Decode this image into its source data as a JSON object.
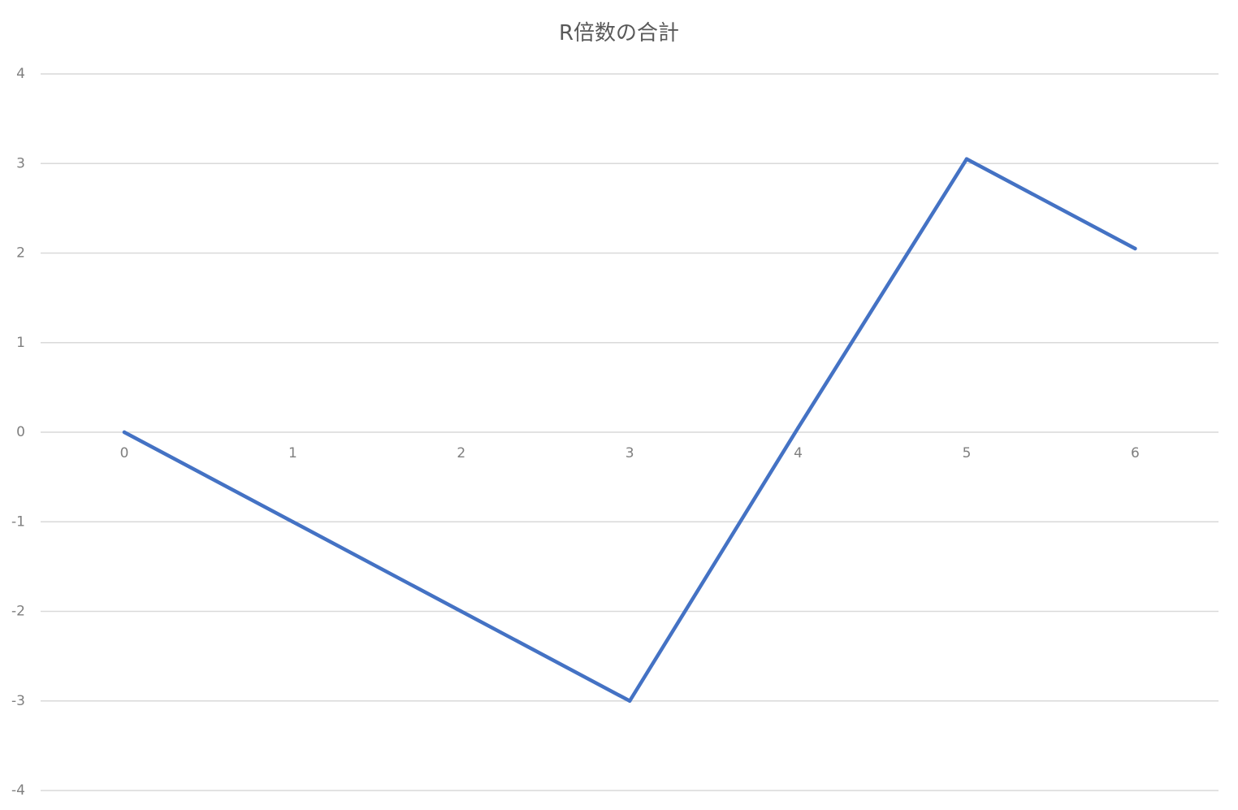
{
  "chart_data": {
    "type": "line",
    "title": "R倍数の合計",
    "xlabel": "",
    "ylabel": "",
    "x": [
      0,
      1,
      2,
      3,
      4,
      5,
      6
    ],
    "series": [
      {
        "values": [
          0,
          -1,
          -2,
          -3,
          0.05,
          3.05,
          2.05
        ]
      }
    ],
    "ylim": [
      -4,
      4
    ],
    "yticks": [
      -4,
      -3,
      -2,
      -1,
      0,
      1,
      2,
      3,
      4
    ],
    "xtick_labels": [
      "0",
      "1",
      "2",
      "3",
      "4",
      "5",
      "6"
    ],
    "ytick_labels": [
      "-4",
      "-3",
      "-2",
      "-1",
      "0",
      "1",
      "2",
      "3",
      "4"
    ],
    "grid": true,
    "legend": "none",
    "colors": {
      "series": "#4472c4",
      "grid": "#d9d9d9",
      "text": "#595959"
    }
  }
}
